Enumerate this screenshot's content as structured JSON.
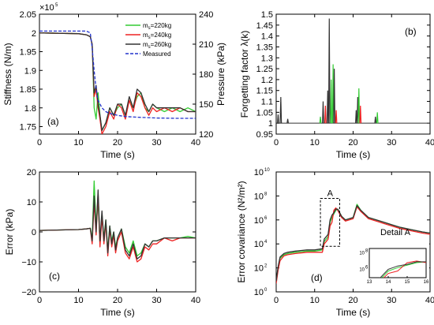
{
  "chart_data": [
    {
      "id": "a",
      "type": "line",
      "panel_label": "(a)",
      "xlabel": "Time (s)",
      "ylabel": "Stiffness (N/m)",
      "y2label": "Pressure (kPa)",
      "xlim": [
        0,
        40
      ],
      "ylim": [
        1.73,
        2.05
      ],
      "y2lim": [
        120,
        240
      ],
      "xticks": [
        "0",
        "10",
        "20",
        "30",
        "40"
      ],
      "yticks": [
        "1.75",
        "1.8",
        "1.85",
        "1.9",
        "1.95",
        "2",
        "2.05"
      ],
      "y2ticks": [
        "120",
        "150",
        "180",
        "210",
        "240"
      ],
      "exponent_label": "×10",
      "exponent_power": "5",
      "legend": [
        {
          "label": "m",
          "sub": "s",
          "suffix": "=220kg",
          "color": "#33cc33"
        },
        {
          "label": "m",
          "sub": "s",
          "suffix": "=240kg",
          "color": "#ee2222"
        },
        {
          "label": "m",
          "sub": "s",
          "suffix": "=260kg",
          "color": "#333333"
        },
        {
          "label": "Measured",
          "sub": "",
          "suffix": "",
          "color": "#2233cc"
        }
      ],
      "series": [
        {
          "name": "ms=220kg",
          "color": "#33cc33",
          "x": [
            0,
            10,
            12,
            13,
            13.5,
            14,
            14.5,
            15,
            15.5,
            16,
            17,
            18,
            19,
            20,
            21,
            22,
            23,
            24,
            25,
            26,
            27,
            28,
            29,
            30,
            32,
            34,
            36,
            38,
            40
          ],
          "y": [
            2.0,
            1.998,
            1.995,
            1.99,
            1.97,
            1.8,
            1.77,
            1.84,
            1.78,
            1.74,
            1.76,
            1.8,
            1.78,
            1.8,
            1.81,
            1.78,
            1.82,
            1.8,
            1.83,
            1.84,
            1.8,
            1.79,
            1.81,
            1.8,
            1.79,
            1.8,
            1.79,
            1.8,
            1.79
          ]
        },
        {
          "name": "ms=240kg",
          "color": "#ee2222",
          "x": [
            0,
            10,
            12,
            13,
            13.5,
            14,
            14.5,
            15,
            15.5,
            16,
            17,
            18,
            19,
            20,
            21,
            22,
            23,
            24,
            25,
            26,
            27,
            28,
            29,
            30,
            32,
            34,
            36,
            38,
            40
          ],
          "y": [
            2.0,
            1.998,
            1.995,
            1.99,
            1.97,
            1.83,
            1.85,
            1.8,
            1.77,
            1.73,
            1.75,
            1.79,
            1.77,
            1.81,
            1.8,
            1.77,
            1.82,
            1.79,
            1.84,
            1.83,
            1.8,
            1.78,
            1.8,
            1.79,
            1.8,
            1.79,
            1.8,
            1.79,
            1.79
          ]
        },
        {
          "name": "ms=260kg",
          "color": "#333333",
          "x": [
            0,
            10,
            12,
            13,
            13.5,
            14,
            14.5,
            15,
            15.5,
            16,
            17,
            18,
            19,
            20,
            21,
            22,
            23,
            24,
            25,
            26,
            27,
            28,
            29,
            30,
            32,
            34,
            36,
            38,
            40
          ],
          "y": [
            2.0,
            1.998,
            1.995,
            1.99,
            1.97,
            1.84,
            1.86,
            1.81,
            1.78,
            1.74,
            1.76,
            1.8,
            1.78,
            1.81,
            1.81,
            1.78,
            1.83,
            1.8,
            1.85,
            1.84,
            1.81,
            1.79,
            1.81,
            1.8,
            1.8,
            1.8,
            1.8,
            1.79,
            1.79
          ]
        },
        {
          "name": "Measured",
          "color": "#2233cc",
          "dashed": true,
          "x": [
            0,
            5,
            10,
            12,
            13,
            13.5,
            14,
            14.5,
            15,
            16,
            17,
            18,
            20,
            22,
            25,
            30,
            35,
            40
          ],
          "y": [
            2.005,
            2.005,
            2.005,
            2.005,
            2.0,
            1.96,
            1.9,
            1.85,
            1.82,
            1.8,
            1.79,
            1.785,
            1.78,
            1.777,
            1.775,
            1.773,
            1.772,
            1.772
          ]
        }
      ]
    },
    {
      "id": "b",
      "type": "line",
      "panel_label": "(b)",
      "xlabel": "Time (s)",
      "ylabel": "Forgetting factor λ(k)",
      "xlim": [
        0,
        40
      ],
      "ylim": [
        0.95,
        1.5
      ],
      "xticks": [
        "0",
        "10",
        "20",
        "30",
        "40"
      ],
      "yticks": [
        "0.95",
        "1",
        "1.05",
        "1.1",
        "1.15",
        "1.2",
        "1.25",
        "1.3",
        "1.35",
        "1.4",
        "1.45",
        "1.5"
      ],
      "spikes": [
        {
          "t": 0.5,
          "v": 1.04,
          "color": "#333333"
        },
        {
          "t": 1.2,
          "v": 1.12,
          "color": "#333333"
        },
        {
          "t": 3.0,
          "v": 1.02,
          "color": "#333333"
        },
        {
          "t": 11.5,
          "v": 1.03,
          "color": "#33cc33"
        },
        {
          "t": 12.2,
          "v": 1.1,
          "color": "#333333"
        },
        {
          "t": 12.8,
          "v": 1.08,
          "color": "#ee2222"
        },
        {
          "t": 13.4,
          "v": 1.15,
          "color": "#333333"
        },
        {
          "t": 13.8,
          "v": 1.48,
          "color": "#333333"
        },
        {
          "t": 14.3,
          "v": 1.2,
          "color": "#33cc33"
        },
        {
          "t": 14.8,
          "v": 1.27,
          "color": "#33cc33"
        },
        {
          "t": 15.1,
          "v": 1.25,
          "color": "#333333"
        },
        {
          "t": 15.6,
          "v": 1.06,
          "color": "#ee2222"
        },
        {
          "t": 20.8,
          "v": 1.06,
          "color": "#333333"
        },
        {
          "t": 21.2,
          "v": 1.12,
          "color": "#333333"
        },
        {
          "t": 21.5,
          "v": 1.16,
          "color": "#33cc33"
        },
        {
          "t": 21.9,
          "v": 1.08,
          "color": "#ee2222"
        },
        {
          "t": 25.8,
          "v": 1.03,
          "color": "#333333"
        },
        {
          "t": 26.3,
          "v": 1.05,
          "color": "#33cc33"
        }
      ]
    },
    {
      "id": "c",
      "type": "line",
      "panel_label": "(c)",
      "xlabel": "Time (s)",
      "ylabel": "Error (kPa)",
      "xlim": [
        0,
        40
      ],
      "ylim": [
        -20,
        20
      ],
      "xticks": [
        "0",
        "10",
        "20",
        "30",
        "40"
      ],
      "yticks": [
        "−20",
        "−10",
        "0",
        "10",
        "20"
      ],
      "series": [
        {
          "name": "ms=220kg",
          "color": "#33cc33",
          "x": [
            0,
            10,
            12,
            13,
            13.5,
            14,
            14.5,
            15,
            15.5,
            16,
            16.5,
            17,
            17.5,
            18,
            18.5,
            19,
            19.5,
            20,
            21,
            22,
            23,
            24,
            25,
            26,
            27,
            28,
            29,
            30,
            32,
            34,
            36,
            38,
            40
          ],
          "y": [
            0.5,
            0.8,
            1.0,
            1.2,
            -2,
            17,
            2,
            10,
            -4,
            6,
            -2,
            4,
            -6,
            2,
            -3,
            0,
            -5,
            -2,
            1,
            -5,
            -7,
            -3,
            -8,
            -7,
            -4,
            -5,
            -3,
            -3,
            -2,
            -2,
            -2,
            -1.5,
            -2
          ]
        },
        {
          "name": "ms=240kg",
          "color": "#ee2222",
          "x": [
            0,
            10,
            12,
            13,
            13.5,
            14,
            14.5,
            15,
            15.5,
            16,
            16.5,
            17,
            17.5,
            18,
            18.5,
            19,
            19.5,
            20,
            21,
            22,
            23,
            24,
            25,
            26,
            27,
            28,
            29,
            30,
            32,
            34,
            36,
            38,
            40
          ],
          "y": [
            0.5,
            0.8,
            1.0,
            1.2,
            -4,
            10,
            -1,
            13,
            -5,
            5,
            -4,
            3,
            -8,
            1,
            -5,
            -1,
            -7,
            -3,
            0,
            -7,
            -9,
            -5,
            -10,
            -9,
            -5,
            -6,
            -4,
            -4,
            -2,
            -3,
            -2,
            -2,
            -2
          ]
        },
        {
          "name": "ms=260kg",
          "color": "#333333",
          "x": [
            0,
            10,
            12,
            13,
            13.5,
            14,
            14.5,
            15,
            15.5,
            16,
            16.5,
            17,
            17.5,
            18,
            18.5,
            19,
            19.5,
            20,
            21,
            22,
            23,
            24,
            25,
            26,
            27,
            28,
            29,
            30,
            32,
            34,
            36,
            38,
            40
          ],
          "y": [
            0.5,
            0.8,
            1.0,
            1.2,
            -3,
            12,
            0,
            14,
            -3,
            7,
            -3,
            4,
            -7,
            2,
            -4,
            0,
            -6,
            -2,
            1,
            -6,
            -8,
            -4,
            -9,
            -8,
            -4,
            -5,
            -3,
            -3,
            -2,
            -2,
            -2,
            -2,
            -2
          ]
        }
      ]
    },
    {
      "id": "d",
      "type": "line",
      "panel_label": "(d)",
      "xlabel": "Time (s)",
      "ylabel": "Error covariance (N²/m²)",
      "xlim": [
        0,
        40
      ],
      "ylim_log10": [
        0,
        10
      ],
      "log_scale": true,
      "xticks": [
        "0",
        "10",
        "20",
        "30",
        "40"
      ],
      "yticks_base": [
        "10",
        "10",
        "10",
        "10",
        "10",
        "10"
      ],
      "yticks_exp": [
        "0",
        "2",
        "4",
        "6",
        "8",
        "10"
      ],
      "annotation_box": "A",
      "inset_title": "Detail  A",
      "inset_xticks": [
        "13",
        "14",
        "15",
        "16"
      ],
      "inset_ytick_base": [
        "10",
        "10"
      ],
      "inset_ytick_exp": [
        "6",
        "8"
      ],
      "series": [
        {
          "name": "ms=220kg",
          "color": "#33cc33",
          "x": [
            0,
            0.5,
            1,
            2,
            3,
            5,
            8,
            10,
            12,
            12.5,
            13,
            13.5,
            14,
            14.5,
            15,
            15.5,
            16,
            17,
            18,
            20,
            21,
            22,
            24,
            26,
            28,
            30,
            32,
            35,
            38,
            40
          ],
          "log10y": [
            0.8,
            2.0,
            2.8,
            3.1,
            3.2,
            3.3,
            3.4,
            3.4,
            3.5,
            4.2,
            4.4,
            4.6,
            5.8,
            6.2,
            6.5,
            6.8,
            6.9,
            6.3,
            6.0,
            6.2,
            7.3,
            6.8,
            6.2,
            6.0,
            5.8,
            5.6,
            5.4,
            5.2,
            5.0,
            4.9
          ]
        },
        {
          "name": "ms=240kg",
          "color": "#ee2222",
          "x": [
            0,
            0.5,
            1,
            2,
            3,
            5,
            8,
            10,
            12,
            12.5,
            13,
            13.5,
            14,
            14.5,
            15,
            15.5,
            16,
            17,
            18,
            20,
            21,
            22,
            24,
            26,
            28,
            30,
            32,
            35,
            38,
            40
          ],
          "log10y": [
            0.7,
            1.8,
            2.6,
            3.0,
            3.1,
            3.2,
            3.3,
            3.3,
            3.3,
            4.0,
            4.2,
            4.4,
            5.5,
            5.8,
            6.8,
            7.0,
            6.8,
            6.2,
            5.9,
            6.1,
            7.1,
            6.7,
            6.1,
            5.9,
            5.7,
            5.5,
            5.3,
            5.1,
            4.9,
            4.8
          ]
        },
        {
          "name": "ms=260kg",
          "color": "#333333",
          "x": [
            0,
            0.5,
            1,
            2,
            3,
            5,
            8,
            10,
            12,
            12.5,
            13,
            13.5,
            14,
            14.5,
            15,
            15.5,
            16,
            17,
            18,
            20,
            21,
            22,
            24,
            26,
            28,
            30,
            32,
            35,
            38,
            40
          ],
          "log10y": [
            0.9,
            2.1,
            2.9,
            3.2,
            3.3,
            3.4,
            3.5,
            3.5,
            3.6,
            4.4,
            4.6,
            4.8,
            6.0,
            6.4,
            6.6,
            6.9,
            6.9,
            6.3,
            6.0,
            6.2,
            7.2,
            6.8,
            6.2,
            6.0,
            5.8,
            5.6,
            5.4,
            5.2,
            5.0,
            4.9
          ]
        }
      ]
    }
  ]
}
